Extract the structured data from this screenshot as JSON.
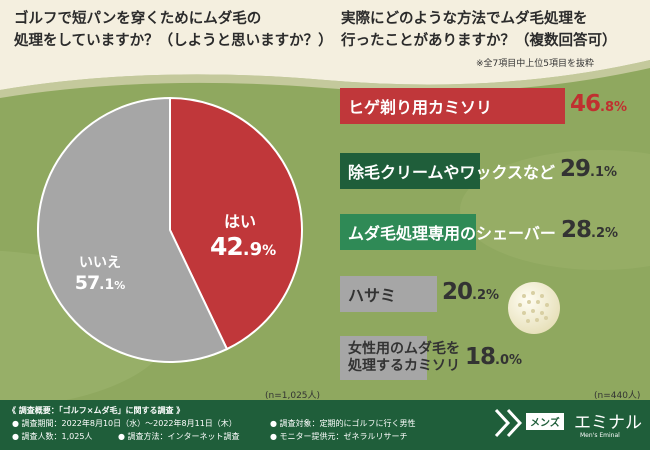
{
  "left_title": {
    "line1": "ゴルフで短パンを穿くためにムダ毛の",
    "line2": "処理をしていますか？（しようと思いますか？）"
  },
  "right_title": {
    "line1": "実際にどのような方法でムダ毛処理を",
    "line2": "行ったことがありますか？（複数回答可）",
    "note": "※全7項目中上位5項目を抜粋"
  },
  "colors": {
    "red": "#c0373a",
    "gray": "#a6a6a6",
    "dark_green": "#1f5e3a",
    "mid_green": "#2f8a56",
    "field": "#8fa85f",
    "cream": "#f4efdf"
  },
  "chart_data": [
    {
      "type": "pie",
      "slices": [
        {
          "label": "はい",
          "value": 42.9,
          "color": "#c0373a"
        },
        {
          "label": "いいえ",
          "value": 57.1,
          "color": "#a6a6a6"
        }
      ],
      "sample_note": "(n=1,025人)"
    },
    {
      "type": "bar",
      "categories": [
        "ヒゲ剃り用カミソリ",
        "除毛クリームやワックスなど",
        "ムダ毛処理専用のシェーバー",
        "ハサミ",
        "女性用のムダ毛を処理するカミソリ"
      ],
      "values": [
        46.8,
        29.1,
        28.2,
        20.2,
        18.0
      ],
      "colors": [
        "#c0373a",
        "#1f5e3a",
        "#2f8a56",
        "#a6a6a6",
        "#a6a6a6"
      ],
      "sample_note": "(n=440人)"
    }
  ],
  "pie_labels": {
    "yes_label": "はい",
    "yes_int": "42",
    "yes_dec": ".9",
    "no_label": "いいえ",
    "no_int": "57",
    "no_dec": ".1",
    "unit": "%"
  },
  "bar_labels": {
    "b1": "ヒゲ剃り用カミソリ",
    "b2": "除毛クリームやワックスなど",
    "b3": "ムダ毛処理専用のシェーバー",
    "b4": "ハサミ",
    "b5_line1": "女性用のムダ毛を",
    "b5_line2": "処理するカミソリ",
    "p1_int": "46",
    "p1_dec": ".8",
    "p2_int": "29",
    "p2_dec": ".1",
    "p3_int": "28",
    "p3_dec": ".2",
    "p4_int": "20",
    "p4_dec": ".2",
    "p5_int": "18",
    "p5_dec": ".0",
    "unit": "%"
  },
  "footer": {
    "heading": "《 調査概要：「ゴルフ×ムダ毛」に関する調査 》",
    "period": "● 調査期間：2022年8月10日（水）〜2022年8月11日（木）",
    "count": "● 調査人数：1,025人",
    "method": "● 調査方法：インターネット調査",
    "target": "● 調査対象：定期的にゴルフに行く男性",
    "provider": "● モニター提供元：ゼネラルリサーチ"
  },
  "logo": {
    "mens": "メンズ",
    "eminal": "エミナル",
    "sub": "Men's Eminal"
  }
}
